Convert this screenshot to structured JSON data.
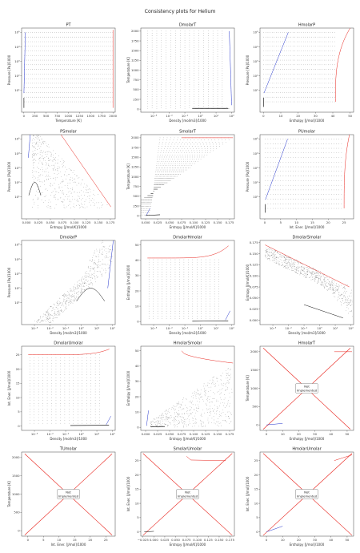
{
  "figure": {
    "title": "Consistency plots for Helium"
  },
  "panels_note": "",
  "chart_data": [
    {
      "id": "PT",
      "type": "scatter",
      "title": "PT",
      "xlabel": "Temperature [K]",
      "ylabel": "Pressure [Pa]/1000",
      "xlim": [
        -50,
        2050
      ],
      "ylog": true,
      "ylim": [
        0.3,
        200000
      ],
      "xticks": [
        0,
        250,
        500,
        750,
        1000,
        1250,
        1500,
        1750,
        2000
      ],
      "yticks": [
        {
          "v": 10,
          "l": "10¹"
        },
        {
          "v": 100,
          "l": "10²"
        },
        {
          "v": 1000,
          "l": "10³"
        },
        {
          "v": 10000,
          "l": "10⁴"
        },
        {
          "v": 100000,
          "l": "10⁵"
        }
      ],
      "implemented": true
    },
    {
      "id": "DmolarT",
      "type": "scatter",
      "title": "DmolarT",
      "xlabel": "Density [mol/m3]/1000",
      "ylabel": "Temperature [K]",
      "xlog": true,
      "xlim": [
        0.00015,
        150
      ],
      "ylim": [
        -80,
        2080
      ],
      "xticks": [
        {
          "v": 0.001,
          "l": "10⁻³"
        },
        {
          "v": 0.01,
          "l": "10⁻²"
        },
        {
          "v": 0.1,
          "l": "10⁻¹"
        },
        {
          "v": 1,
          "l": "10⁰"
        },
        {
          "v": 10,
          "l": "10¹"
        },
        {
          "v": 100,
          "l": "10²"
        }
      ],
      "yticks": [
        0,
        250,
        500,
        750,
        1000,
        1250,
        1500,
        1750,
        2000
      ],
      "implemented": true
    },
    {
      "id": "HmolarP",
      "type": "scatter",
      "title": "HmolarP",
      "xlabel": "Enthalpy [J/mol]/1000",
      "ylabel": "Pressure [Pa]/1000",
      "xlim": [
        -2,
        52
      ],
      "ylog": true,
      "ylim": [
        0.3,
        200000
      ],
      "xticks": [
        0,
        10,
        20,
        30,
        40,
        50
      ],
      "yticks": [
        {
          "v": 10,
          "l": "10¹"
        },
        {
          "v": 100,
          "l": "10²"
        },
        {
          "v": 1000,
          "l": "10³"
        },
        {
          "v": 10000,
          "l": "10⁴"
        },
        {
          "v": 100000,
          "l": "10⁵"
        }
      ],
      "implemented": true
    },
    {
      "id": "PSmolar",
      "type": "scatter",
      "title": "PSmolar",
      "xlabel": "Entropy [J/mol/K]/1000",
      "ylabel": "Pressure [Pa]/1000",
      "xlim": [
        -0.01,
        0.185
      ],
      "ylog": true,
      "ylim": [
        0.3,
        200000
      ],
      "xticks": [
        {
          "v": 0,
          "l": "0.000"
        },
        {
          "v": 0.025,
          "l": "0.025"
        },
        {
          "v": 0.05,
          "l": "0.050"
        },
        {
          "v": 0.075,
          "l": "0.075"
        },
        {
          "v": 0.1,
          "l": "0.100"
        },
        {
          "v": 0.125,
          "l": "0.125"
        },
        {
          "v": 0.15,
          "l": "0.150"
        },
        {
          "v": 0.175,
          "l": "0.175"
        }
      ],
      "yticks": [
        {
          "v": 10,
          "l": "10¹"
        },
        {
          "v": 100,
          "l": "10²"
        },
        {
          "v": 1000,
          "l": "10³"
        },
        {
          "v": 10000,
          "l": "10⁴"
        },
        {
          "v": 100000,
          "l": "10⁵"
        }
      ],
      "implemented": true
    },
    {
      "id": "SmolarT",
      "type": "scatter",
      "title": "SmolarT",
      "xlabel": "Entropy [J/mol/K]/1000",
      "ylabel": "Temperature [K]",
      "xlim": [
        -0.01,
        0.185
      ],
      "ylim": [
        -80,
        2080
      ],
      "xticks": [
        {
          "v": 0,
          "l": "0.000"
        },
        {
          "v": 0.025,
          "l": "0.025"
        },
        {
          "v": 0.05,
          "l": "0.050"
        },
        {
          "v": 0.075,
          "l": "0.075"
        },
        {
          "v": 0.1,
          "l": "0.100"
        },
        {
          "v": 0.125,
          "l": "0.125"
        },
        {
          "v": 0.15,
          "l": "0.150"
        },
        {
          "v": 0.175,
          "l": "0.175"
        }
      ],
      "yticks": [
        0,
        250,
        500,
        750,
        1000,
        1250,
        1500,
        1750,
        2000
      ],
      "implemented": true
    },
    {
      "id": "PUmolar",
      "type": "scatter",
      "title": "PUmolar",
      "xlabel": "Int. Ener. [J/mol]/1000",
      "ylabel": "Pressure [Pa]/1000",
      "xlim": [
        -1.5,
        28
      ],
      "ylog": true,
      "ylim": [
        0.3,
        200000
      ],
      "xticks": [
        0,
        5,
        10,
        15,
        20,
        25
      ],
      "yticks": [
        {
          "v": 10,
          "l": "10¹"
        },
        {
          "v": 100,
          "l": "10²"
        },
        {
          "v": 1000,
          "l": "10³"
        },
        {
          "v": 10000,
          "l": "10⁴"
        },
        {
          "v": 100000,
          "l": "10⁵"
        }
      ],
      "implemented": true
    },
    {
      "id": "DmolarP",
      "type": "scatter",
      "title": "DmolarP",
      "xlabel": "Density [mol/m3]/1000",
      "ylabel": "Pressure [Pa]/1000",
      "xlog": true,
      "xlim": [
        0.00015,
        150
      ],
      "ylog": true,
      "ylim": [
        0.3,
        200000
      ],
      "xticks": [
        {
          "v": 0.001,
          "l": "10⁻³"
        },
        {
          "v": 0.01,
          "l": "10⁻²"
        },
        {
          "v": 0.1,
          "l": "10⁻¹"
        },
        {
          "v": 1,
          "l": "10⁰"
        },
        {
          "v": 10,
          "l": "10¹"
        },
        {
          "v": 100,
          "l": "10²"
        }
      ],
      "yticks": [
        {
          "v": 10,
          "l": "10¹"
        },
        {
          "v": 100,
          "l": "10²"
        },
        {
          "v": 1000,
          "l": "10³"
        },
        {
          "v": 10000,
          "l": "10⁴"
        },
        {
          "v": 100000,
          "l": "10⁵"
        }
      ],
      "implemented": true
    },
    {
      "id": "DmolarHmolar",
      "type": "scatter",
      "title": "DmolarHmolar",
      "xlabel": "Density [mol/m3]/1000",
      "ylabel": "Enthalpy [J/mol]/1000",
      "xlog": true,
      "xlim": [
        0.00015,
        150
      ],
      "ylim": [
        -2,
        53
      ],
      "xticks": [
        {
          "v": 0.001,
          "l": "10⁻³"
        },
        {
          "v": 0.01,
          "l": "10⁻²"
        },
        {
          "v": 0.1,
          "l": "10⁻¹"
        },
        {
          "v": 1,
          "l": "10⁰"
        },
        {
          "v": 10,
          "l": "10¹"
        },
        {
          "v": 100,
          "l": "10²"
        }
      ],
      "yticks": [
        0,
        10,
        20,
        30,
        40,
        50
      ],
      "implemented": true
    },
    {
      "id": "DmolarSmolar",
      "type": "scatter",
      "title": "DmolarSmolar",
      "xlabel": "Density [mol/m3]/1000",
      "ylabel": "Entropy [J/mol/K]/1000",
      "xlog": true,
      "xlim": [
        0.00015,
        150
      ],
      "ylim": [
        -0.01,
        0.18
      ],
      "xticks": [
        {
          "v": 0.001,
          "l": "10⁻³"
        },
        {
          "v": 0.01,
          "l": "10⁻²"
        },
        {
          "v": 0.1,
          "l": "10⁻¹"
        },
        {
          "v": 1,
          "l": "10⁰"
        },
        {
          "v": 10,
          "l": "10¹"
        },
        {
          "v": 100,
          "l": "10²"
        }
      ],
      "yticks": [
        {
          "v": 0,
          "l": "0.000"
        },
        {
          "v": 0.025,
          "l": "0.025"
        },
        {
          "v": 0.05,
          "l": "0.050"
        },
        {
          "v": 0.075,
          "l": "0.075"
        },
        {
          "v": 0.1,
          "l": "0.100"
        },
        {
          "v": 0.125,
          "l": "0.125"
        },
        {
          "v": 0.15,
          "l": "0.150"
        },
        {
          "v": 0.175,
          "l": "0.175"
        }
      ],
      "implemented": true
    },
    {
      "id": "DmolarUmolar",
      "type": "scatter",
      "title": "DmolarUmolar",
      "xlabel": "Density [mol/m3]/1000",
      "ylabel": "Int. Ener. [J/mol]/1000",
      "xlog": true,
      "xlim": [
        0.00015,
        150
      ],
      "ylim": [
        -1.5,
        28
      ],
      "xticks": [
        {
          "v": 0.001,
          "l": "10⁻³"
        },
        {
          "v": 0.01,
          "l": "10⁻²"
        },
        {
          "v": 0.1,
          "l": "10⁻¹"
        },
        {
          "v": 1,
          "l": "10⁰"
        },
        {
          "v": 10,
          "l": "10¹"
        },
        {
          "v": 100,
          "l": "10²"
        }
      ],
      "yticks": [
        0,
        5,
        10,
        15,
        20,
        25
      ],
      "implemented": true
    },
    {
      "id": "HmolarSmolar",
      "type": "scatter",
      "title": "HmolarSmolar",
      "xlabel": "Entropy [J/mol/K]/1000",
      "ylabel": "Enthalpy [J/mol]/1000",
      "xlim": [
        -0.01,
        0.185
      ],
      "ylim": [
        -2,
        53
      ],
      "xticks": [
        {
          "v": 0,
          "l": "0.000"
        },
        {
          "v": 0.025,
          "l": "0.025"
        },
        {
          "v": 0.05,
          "l": "0.050"
        },
        {
          "v": 0.075,
          "l": "0.075"
        },
        {
          "v": 0.1,
          "l": "0.100"
        },
        {
          "v": 0.125,
          "l": "0.125"
        },
        {
          "v": 0.15,
          "l": "0.150"
        },
        {
          "v": 0.175,
          "l": "0.175"
        }
      ],
      "yticks": [
        0,
        10,
        20,
        30,
        40,
        50
      ],
      "implemented": true
    },
    {
      "id": "HmolarT",
      "type": "scatter",
      "title": "HmolarT",
      "xlabel": "Enthalpy [J/mol]/1000",
      "ylabel": "Temperature [K]",
      "xlim": [
        -4,
        54
      ],
      "ylim": [
        -150,
        2150
      ],
      "xticks": [
        0,
        10,
        20,
        30,
        40,
        50
      ],
      "yticks": [
        0,
        500,
        1000,
        1500,
        2000
      ],
      "implemented": false,
      "not_implemented_text": "Not\nImplemented"
    },
    {
      "id": "TUmolar",
      "type": "scatter",
      "title": "TUmolar",
      "xlabel": "Int. Ener. [J/mol]/1000",
      "ylabel": "Temperature [K]",
      "xlim": [
        -2,
        28
      ],
      "ylim": [
        -150,
        2150
      ],
      "xticks": [
        0,
        5,
        10,
        15,
        20,
        25
      ],
      "yticks": [
        0,
        500,
        1000,
        1500,
        2000
      ],
      "implemented": false,
      "not_implemented_text": "Not\nImplemented"
    },
    {
      "id": "SmolarUmolar",
      "type": "scatter",
      "title": "SmolarUmolar",
      "xlabel": "Entropy [J/mol/K]/1000",
      "ylabel": "Int. Ener. [J/mol]/1000",
      "xlim": [
        -0.03,
        0.185
      ],
      "ylim": [
        -1.5,
        28
      ],
      "xticks": [
        {
          "v": -0.025,
          "l": "−0.025"
        },
        {
          "v": 0,
          "l": "0.000"
        },
        {
          "v": 0.025,
          "l": "0.025"
        },
        {
          "v": 0.05,
          "l": "0.050"
        },
        {
          "v": 0.075,
          "l": "0.075"
        },
        {
          "v": 0.1,
          "l": "0.100"
        },
        {
          "v": 0.125,
          "l": "0.125"
        },
        {
          "v": 0.15,
          "l": "0.150"
        },
        {
          "v": 0.175,
          "l": "0.175"
        }
      ],
      "yticks": [
        0,
        5,
        10,
        15,
        20,
        25
      ],
      "implemented": false,
      "not_implemented_text": "Not\nImplemented"
    },
    {
      "id": "HmolarUmolar",
      "type": "scatter",
      "title": "HmolarUmolar",
      "xlabel": "Enthalpy [J/mol]/1000",
      "ylabel": "Int. Ener. [J/mol]/1000",
      "xlim": [
        -4,
        54
      ],
      "ylim": [
        -1.5,
        28
      ],
      "xticks": [
        0,
        10,
        20,
        30,
        40,
        50
      ],
      "yticks": [
        0,
        5,
        10,
        15,
        20,
        25
      ],
      "implemented": false,
      "not_implemented_text": "Not\nImplemented"
    }
  ]
}
